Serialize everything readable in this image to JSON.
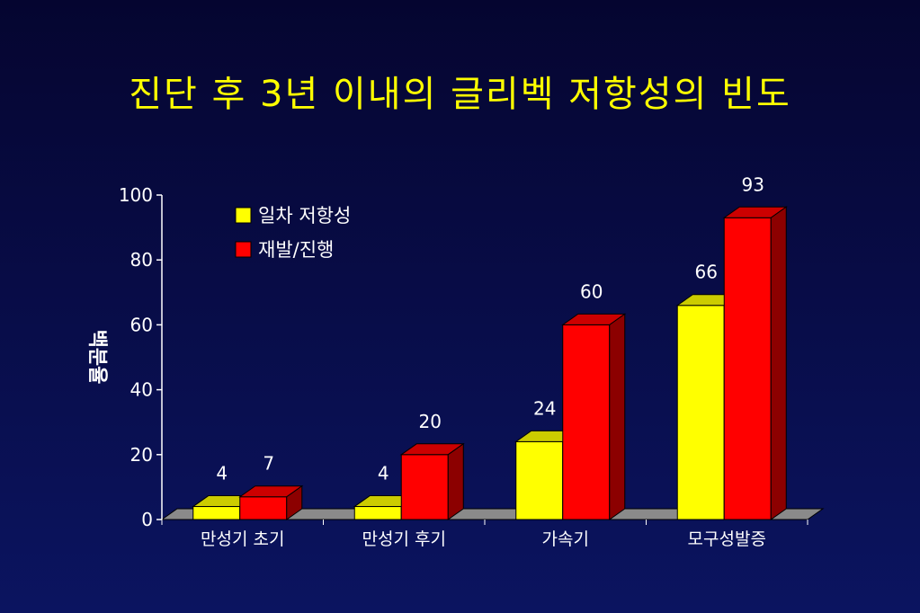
{
  "title": "진단 후 3년 이내의 글리벡 저항성의 빈도",
  "chart_data": {
    "type": "bar",
    "title": "진단 후 3년 이내의 글리벡 저항성의 빈도",
    "xlabel": "",
    "ylabel": "백분율",
    "ylim": [
      0,
      100
    ],
    "yticks": [
      0,
      20,
      40,
      60,
      80,
      100
    ],
    "categories": [
      "만성기 초기",
      "만성기 후기",
      "가속기",
      "모구성발증"
    ],
    "series": [
      {
        "name": "일차 저항성",
        "color": "#ffff00",
        "values": [
          4,
          4,
          24,
          66
        ],
        "labels": [
          "4",
          "4",
          "24",
          "66"
        ]
      },
      {
        "name": "재발/진행",
        "color": "#ff0000",
        "values": [
          7,
          20,
          60,
          93
        ],
        "labels": [
          "7",
          "20",
          "60",
          "93"
        ]
      }
    ],
    "legend_position": "top-left",
    "style": "3d"
  }
}
